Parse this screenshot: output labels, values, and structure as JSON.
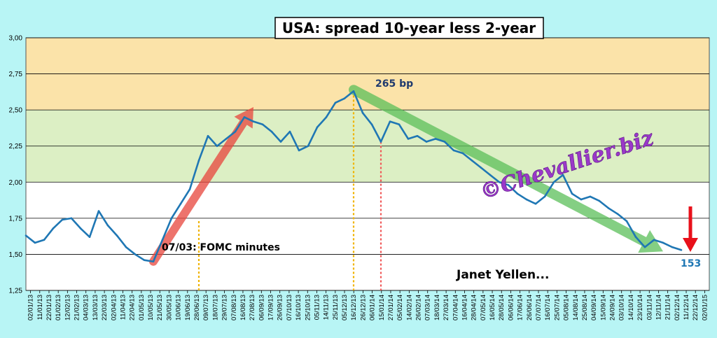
{
  "chart_data": {
    "type": "line",
    "title": "USA: spread 10-year less 2-year",
    "ylim": [
      1.25,
      3.0
    ],
    "y_ticks": [
      "1,25",
      "1,50",
      "1,75",
      "2,00",
      "2,25",
      "2,50",
      "2,75",
      "3,00"
    ],
    "y_tick_values": [
      1.25,
      1.5,
      1.75,
      2.0,
      2.25,
      2.5,
      2.75,
      3.0
    ],
    "x_tick_labels": [
      "02/01/13",
      "11/01/13",
      "22/01/13",
      "01/02/13",
      "12/02/13",
      "21/02/13",
      "04/03/13",
      "13/03/13",
      "22/03/13",
      "02/04/13",
      "11/04/13",
      "22/04/13",
      "01/05/13",
      "10/05/13",
      "21/05/13",
      "30/05/13",
      "10/06/13",
      "19/06/13",
      "28/06/13",
      "09/07/13",
      "18/07/13",
      "29/07/13",
      "07/08/13",
      "16/08/13",
      "27/08/13",
      "06/09/13",
      "17/09/13",
      "26/09/13",
      "07/10/13",
      "16/10/13",
      "25/10/13",
      "05/11/13",
      "14/11/13",
      "25/11/13",
      "05/12/13",
      "16/12/13",
      "26/12/13",
      "06/01/14",
      "15/01/14",
      "27/01/14",
      "05/02/14",
      "14/02/14",
      "26/02/14",
      "07/03/14",
      "18/03/14",
      "27/03/14",
      "07/04/14",
      "16/04/14",
      "28/04/14",
      "07/05/14",
      "16/05/14",
      "28/05/14",
      "06/06/14",
      "17/06/14",
      "26/06/14",
      "07/07/14",
      "16/07/14",
      "25/07/14",
      "05/08/14",
      "14/08/14",
      "25/08/14",
      "04/09/14",
      "15/09/14",
      "24/09/14",
      "03/10/14",
      "14/10/14",
      "23/10/14",
      "03/11/14",
      "12/11/14",
      "21/11/14",
      "02/12/14",
      "11/12/14",
      "22/12/14",
      "02/01/15"
    ],
    "bands": [
      {
        "from": 2.5,
        "to": 3.0,
        "color": "#fbe3a9"
      },
      {
        "from": 2.0,
        "to": 2.5,
        "color": "#dcefc4"
      },
      {
        "from": 1.25,
        "to": 2.0,
        "color": "#ffffff"
      }
    ],
    "series": [
      {
        "color": "#1f77b4",
        "x": [
          0,
          1,
          2,
          3,
          4,
          5,
          6,
          7,
          8,
          9,
          10,
          11,
          12,
          13,
          14,
          15,
          16,
          17,
          18,
          19,
          20,
          21,
          22,
          23,
          24,
          25,
          26,
          27,
          28,
          29,
          30,
          31,
          32,
          33,
          34,
          35,
          36,
          37,
          38,
          39,
          40,
          41,
          42,
          43,
          44,
          45,
          46,
          47,
          48,
          49,
          50,
          51,
          52,
          53,
          54,
          55,
          56,
          57,
          58,
          59,
          60,
          61,
          62,
          63,
          64,
          65,
          66,
          67,
          68,
          69,
          70,
          71,
          72
        ],
        "values": [
          1.63,
          1.58,
          1.6,
          1.68,
          1.74,
          1.75,
          1.68,
          1.62,
          1.8,
          1.7,
          1.63,
          1.55,
          1.5,
          1.46,
          1.45,
          1.6,
          1.75,
          1.85,
          1.95,
          2.15,
          2.32,
          2.25,
          2.3,
          2.35,
          2.45,
          2.42,
          2.4,
          2.35,
          2.28,
          2.35,
          2.22,
          2.25,
          2.38,
          2.45,
          2.55,
          2.58,
          2.63,
          2.48,
          2.4,
          2.28,
          2.42,
          2.4,
          2.3,
          2.32,
          2.28,
          2.3,
          2.28,
          2.22,
          2.2,
          2.15,
          2.1,
          2.05,
          2.0,
          1.98,
          1.92,
          1.88,
          1.85,
          1.9,
          2.0,
          2.05,
          1.92,
          1.88,
          1.9,
          1.87,
          1.82,
          1.78,
          1.73,
          1.62,
          1.55,
          1.6,
          1.58,
          1.55,
          1.53
        ]
      }
    ],
    "annotations": {
      "peak": "265 bp",
      "fomc": "07/03: FOMC minutes",
      "yellen": "Janet Yellen...",
      "last": "153",
      "watermark": "©Chevallier.biz"
    }
  }
}
